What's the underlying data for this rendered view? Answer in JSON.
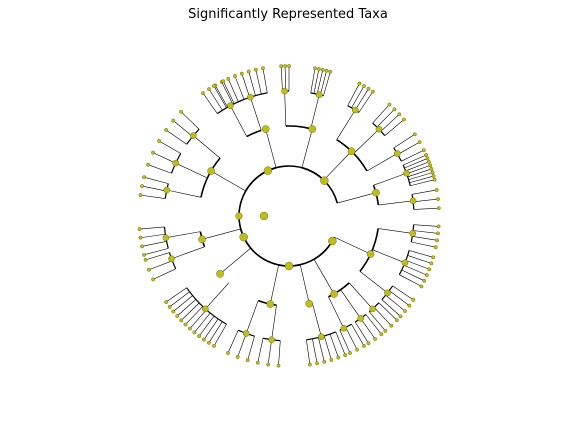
{
  "figure": {
    "title": "Significantly Represented Taxa",
    "node_color": "#bdbd1c",
    "node_edge_color": "#5a5a00",
    "edge_color": "#000000"
  }
}
